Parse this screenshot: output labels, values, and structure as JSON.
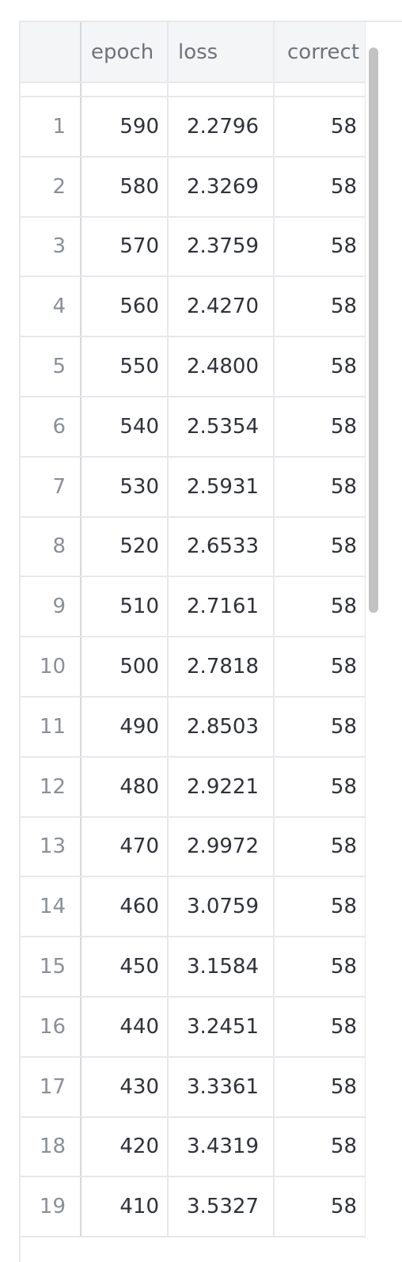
{
  "table": {
    "columns": [
      "",
      "epoch",
      "loss",
      "correct"
    ],
    "rows": [
      {
        "index": "1",
        "epoch": "590",
        "loss": "2.2796",
        "correct": "58"
      },
      {
        "index": "2",
        "epoch": "580",
        "loss": "2.3269",
        "correct": "58"
      },
      {
        "index": "3",
        "epoch": "570",
        "loss": "2.3759",
        "correct": "58"
      },
      {
        "index": "4",
        "epoch": "560",
        "loss": "2.4270",
        "correct": "58"
      },
      {
        "index": "5",
        "epoch": "550",
        "loss": "2.4800",
        "correct": "58"
      },
      {
        "index": "6",
        "epoch": "540",
        "loss": "2.5354",
        "correct": "58"
      },
      {
        "index": "7",
        "epoch": "530",
        "loss": "2.5931",
        "correct": "58"
      },
      {
        "index": "8",
        "epoch": "520",
        "loss": "2.6533",
        "correct": "58"
      },
      {
        "index": "9",
        "epoch": "510",
        "loss": "2.7161",
        "correct": "58"
      },
      {
        "index": "10",
        "epoch": "500",
        "loss": "2.7818",
        "correct": "58"
      },
      {
        "index": "11",
        "epoch": "490",
        "loss": "2.8503",
        "correct": "58"
      },
      {
        "index": "12",
        "epoch": "480",
        "loss": "2.9221",
        "correct": "58"
      },
      {
        "index": "13",
        "epoch": "470",
        "loss": "2.9972",
        "correct": "58"
      },
      {
        "index": "14",
        "epoch": "460",
        "loss": "3.0759",
        "correct": "58"
      },
      {
        "index": "15",
        "epoch": "450",
        "loss": "3.1584",
        "correct": "58"
      },
      {
        "index": "16",
        "epoch": "440",
        "loss": "3.2451",
        "correct": "58"
      },
      {
        "index": "17",
        "epoch": "430",
        "loss": "3.3361",
        "correct": "58"
      },
      {
        "index": "18",
        "epoch": "420",
        "loss": "3.4319",
        "correct": "58"
      },
      {
        "index": "19",
        "epoch": "410",
        "loss": "3.5327",
        "correct": "58"
      }
    ]
  },
  "scroll": {
    "position_fraction": 0.0,
    "visible_fraction": 0.46
  },
  "colors": {
    "header_background": "#f4f5f7",
    "header_text": "#6f737a",
    "cell_text": "#2f3238",
    "index_text": "#8b8f96",
    "grid_line": "#e8e8ec",
    "scrollbar_thumb": "#c2c2c2"
  }
}
